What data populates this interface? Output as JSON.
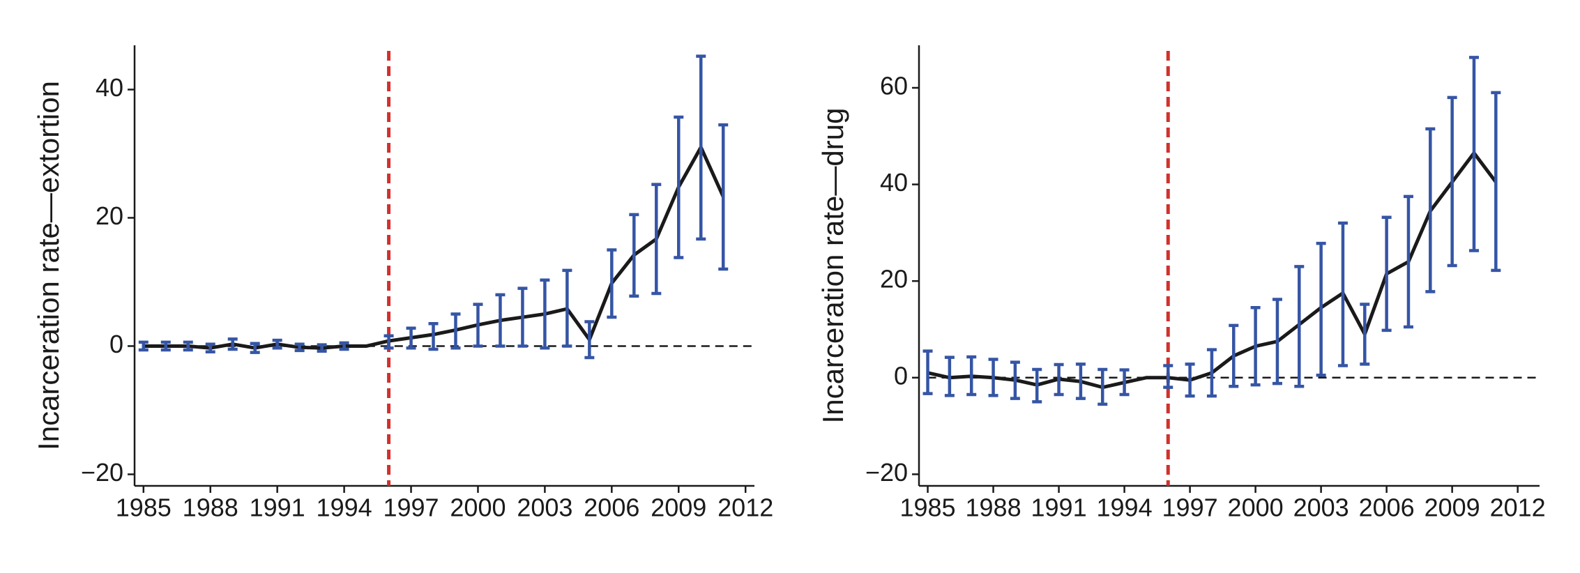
{
  "chart_data": [
    {
      "type": "line",
      "ylabel": "Incarceration rate—extortion",
      "x": [
        1985,
        1986,
        1987,
        1988,
        1989,
        1990,
        1991,
        1992,
        1993,
        1994,
        1995,
        1996,
        1997,
        1998,
        1999,
        2000,
        2001,
        2002,
        2003,
        2004,
        2005,
        2006,
        2007,
        2008,
        2009,
        2010,
        2011
      ],
      "series": [
        {
          "color": "#1a1a1a",
          "error_color": "#3555a5",
          "values": [
            0,
            0,
            0,
            -0.3,
            0.3,
            -0.3,
            0.3,
            -0.2,
            -0.3,
            0,
            0,
            0.8,
            1.3,
            1.8,
            2.5,
            3.3,
            4,
            4.5,
            5,
            5.8,
            1,
            9.8,
            14.2,
            16.7,
            24.8,
            31,
            23.3
          ],
          "lower": [
            -0.6,
            -0.6,
            -0.6,
            -0.9,
            -0.5,
            -1,
            -0.3,
            -0.7,
            -0.8,
            -0.5,
            null,
            -0.3,
            -0.3,
            -0.5,
            -0.3,
            0,
            0,
            0,
            -0.3,
            0,
            -1.8,
            4.5,
            7.8,
            8.2,
            13.8,
            16.7,
            12
          ],
          "upper": [
            0.6,
            0.6,
            0.6,
            0.3,
            1.1,
            0.4,
            0.9,
            0.3,
            0.2,
            0.5,
            null,
            1.6,
            2.8,
            3.5,
            5,
            6.5,
            8,
            9,
            10.3,
            11.8,
            3.8,
            15,
            20.5,
            25.2,
            35.7,
            45.2,
            34.5
          ]
        }
      ],
      "xlim": [
        1984.6,
        2012.4
      ],
      "xticks": [
        1985,
        1988,
        1991,
        1994,
        1997,
        2000,
        2003,
        2006,
        2009,
        2012
      ],
      "ylim": [
        -21.8,
        46.9
      ],
      "yticks": [
        {
          "value": -20,
          "label": "−20"
        },
        0,
        20,
        40
      ],
      "vline": 1996,
      "vline_color": "#d0312d",
      "hline": 0
    },
    {
      "type": "line",
      "ylabel": "Incarceration rate—drug",
      "x": [
        1985,
        1986,
        1987,
        1988,
        1989,
        1990,
        1991,
        1992,
        1993,
        1994,
        1995,
        1996,
        1997,
        1998,
        1999,
        2000,
        2001,
        2002,
        2003,
        2004,
        2005,
        2006,
        2007,
        2008,
        2009,
        2010,
        2011
      ],
      "series": [
        {
          "color": "#1a1a1a",
          "error_color": "#3555a5",
          "values": [
            1,
            0,
            0.3,
            0,
            -0.5,
            -1.5,
            -0.3,
            -0.8,
            -2,
            -1,
            0,
            0,
            -0.5,
            1,
            4.5,
            6.5,
            7.5,
            11,
            14.5,
            17.5,
            9,
            21.5,
            24,
            34.5,
            40.5,
            46.5,
            40.5
          ],
          "lower": [
            -3.3,
            -3.7,
            -3.5,
            -3.7,
            -4.3,
            -5,
            -3.5,
            -4.3,
            -5.5,
            -3.5,
            null,
            -2,
            -3.8,
            -3.8,
            -1.8,
            -1.5,
            -1.2,
            -1.8,
            0.5,
            2.5,
            2.8,
            9.8,
            10.5,
            17.8,
            23.2,
            26.3,
            22.2
          ],
          "upper": [
            5.5,
            4.2,
            4.3,
            3.8,
            3.2,
            1.7,
            2.7,
            2.8,
            1.7,
            1.6,
            null,
            2.5,
            2.8,
            5.8,
            10.8,
            14.5,
            16.2,
            23,
            27.8,
            32,
            15.2,
            33.2,
            37.5,
            51.5,
            58,
            66.3,
            59
          ]
        }
      ],
      "xlim": [
        1984.6,
        2013.0
      ],
      "xticks": [
        1985,
        1988,
        1991,
        1994,
        1997,
        2000,
        2003,
        2006,
        2009,
        2012
      ],
      "ylim": [
        -22.4,
        68.8
      ],
      "yticks": [
        {
          "value": -20,
          "label": "−20"
        },
        0,
        20,
        40,
        60
      ],
      "vline": 1996,
      "vline_color": "#d0312d",
      "hline": 0
    }
  ]
}
